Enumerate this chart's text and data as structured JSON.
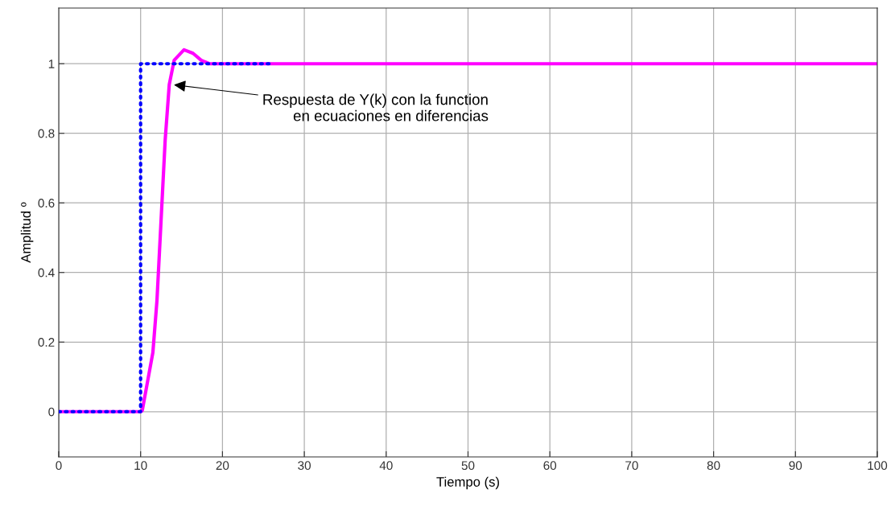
{
  "chart_data": {
    "type": "line",
    "xlabel": "Tiempo (s)",
    "ylabel": "Amplitud º",
    "xlim": [
      0,
      100
    ],
    "ylim": [
      -0.13,
      1.16
    ],
    "xticks": [
      0,
      10,
      20,
      30,
      40,
      50,
      60,
      70,
      80,
      90,
      100
    ],
    "yticks": [
      0,
      0.2,
      0.4,
      0.6,
      0.8,
      1
    ],
    "grid": true,
    "legend": false,
    "series": [
      {
        "color": "#0000ff",
        "line_style": "dotted",
        "x": [
          0,
          10,
          10,
          26
        ],
        "values": [
          0,
          0,
          1,
          1
        ]
      },
      {
        "color": "#ff00ff",
        "line_style": "solid",
        "x": [
          0,
          10,
          10.2,
          11.5,
          12.0,
          12.5,
          13.0,
          13.5,
          14.1,
          15.3,
          16.4,
          17.4,
          18.4,
          100
        ],
        "values": [
          0,
          0,
          0.003,
          0.17,
          0.32,
          0.55,
          0.78,
          0.94,
          1.01,
          1.04,
          1.03,
          1.01,
          1.0,
          1.0
        ]
      }
    ],
    "annotations": [
      {
        "text": "Respuesta de Y(k) con la function\nen ecuaciones en diferencias",
        "x": 13.8,
        "y": 0.94
      }
    ]
  }
}
